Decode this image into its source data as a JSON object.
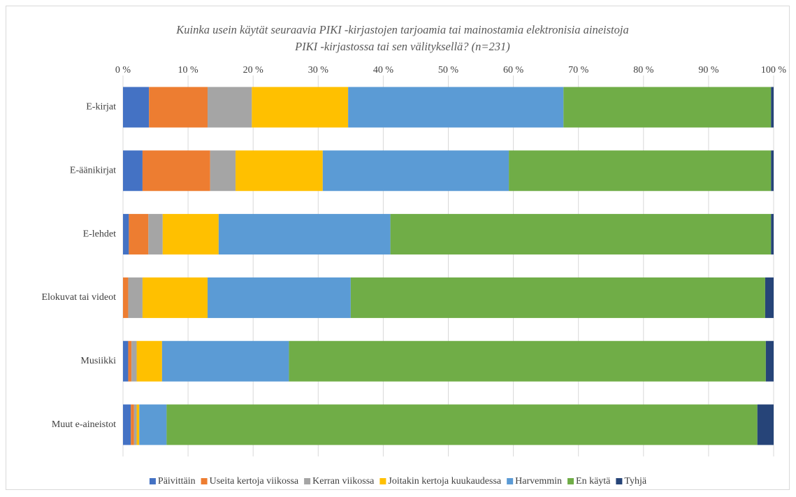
{
  "chart_data": {
    "type": "stacked_barh",
    "title": [
      "Kuinka usein käytät seuraavia PIKI -kirjastojen tarjoamia tai mainostamia elektronisia aineistoja",
      "PIKI -kirjastossa tai sen välityksellä? (n=231)"
    ],
    "categories": [
      "E-kirjat",
      "E-äänikirjat",
      "E-lehdet",
      "Elokuvat tai videot",
      "Musiikki",
      "Muut e-aineistot"
    ],
    "series": [
      {
        "name": "Päivittäin",
        "color": "#4472c4",
        "values": [
          4.0,
          3.0,
          0.9,
          0.0,
          0.8,
          1.2
        ]
      },
      {
        "name": "Useita kertoja viikossa",
        "color": "#ed7d31",
        "values": [
          9.0,
          10.4,
          3.0,
          0.8,
          0.5,
          0.5
        ]
      },
      {
        "name": "Kerran viikossa",
        "color": "#a5a5a5",
        "values": [
          6.8,
          3.9,
          2.2,
          2.2,
          0.8,
          0.4
        ]
      },
      {
        "name": "Joitakin kertoja kuukaudessa",
        "color": "#ffc000",
        "values": [
          14.8,
          13.4,
          8.6,
          10.0,
          3.9,
          0.4
        ]
      },
      {
        "name": "Harvemmin",
        "color": "#5b9bd5",
        "values": [
          33.1,
          28.6,
          26.4,
          22.0,
          19.5,
          4.2
        ]
      },
      {
        "name": "En käytä",
        "color": "#70ad47",
        "values": [
          31.9,
          40.3,
          58.5,
          63.7,
          73.3,
          90.8
        ]
      },
      {
        "name": "Tyhjä",
        "color": "#264478",
        "values": [
          0.4,
          0.4,
          0.4,
          1.3,
          1.2,
          2.5
        ]
      }
    ],
    "xlim": [
      0,
      100
    ],
    "xticks": [
      {
        "value": 0,
        "label": "0 %"
      },
      {
        "value": 10,
        "label": "10 %"
      },
      {
        "value": 20,
        "label": "20 %"
      },
      {
        "value": 30,
        "label": "30 %"
      },
      {
        "value": 40,
        "label": "40 %"
      },
      {
        "value": 50,
        "label": "50 %"
      },
      {
        "value": 60,
        "label": "60 %"
      },
      {
        "value": 70,
        "label": "70 %"
      },
      {
        "value": 80,
        "label": "80 %"
      },
      {
        "value": 90,
        "label": "90 %"
      },
      {
        "value": 100,
        "label": "100 %"
      }
    ],
    "grid": true,
    "legend": "bottom"
  }
}
